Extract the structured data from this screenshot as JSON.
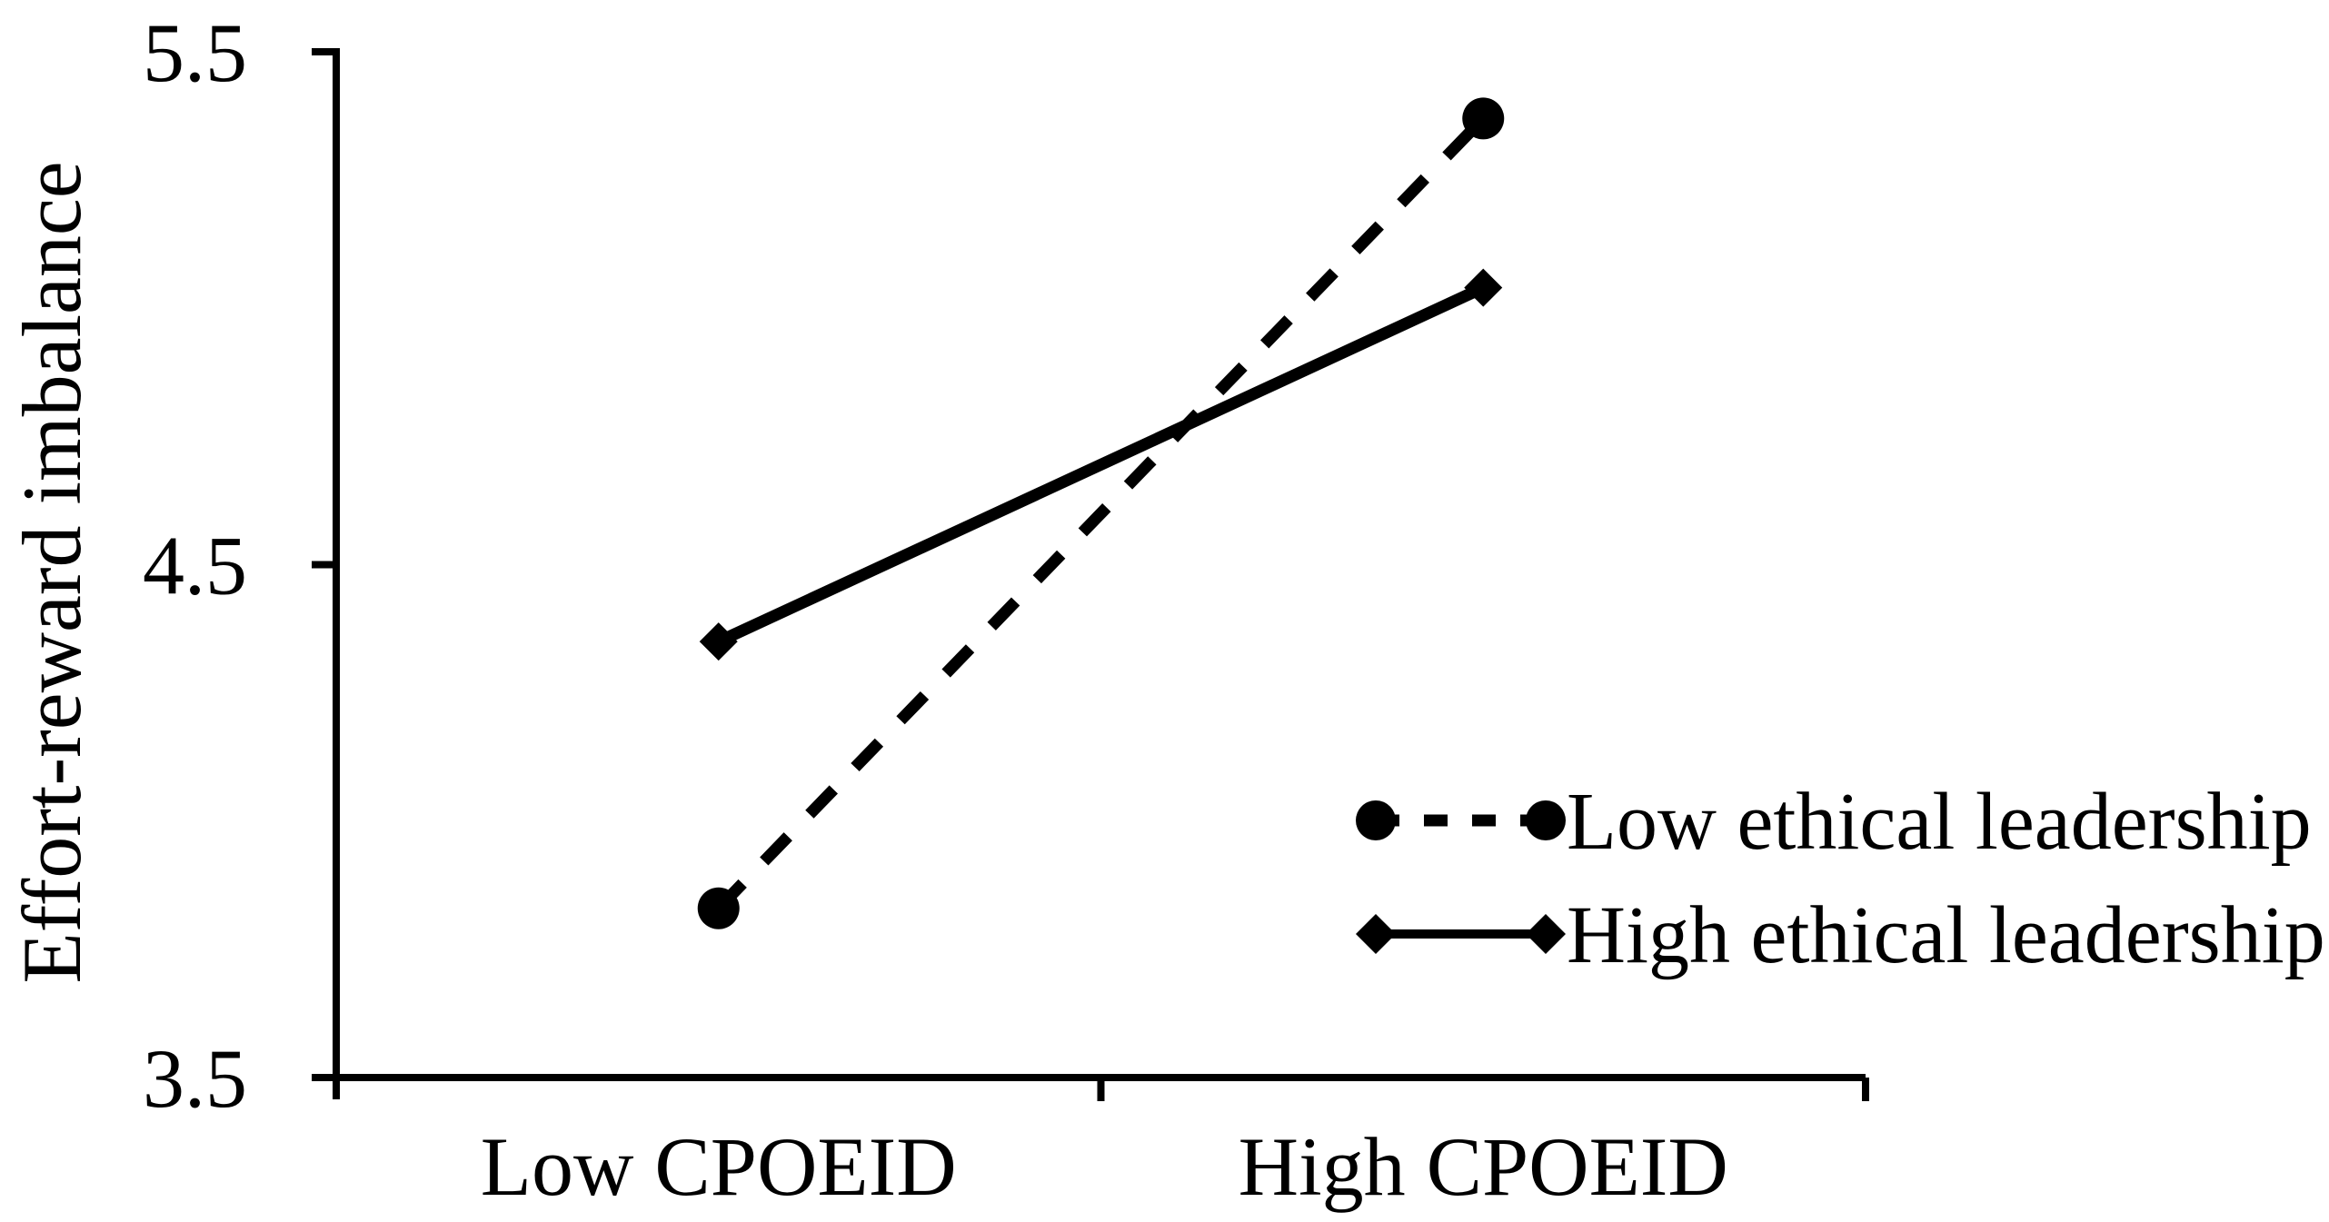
{
  "chart_data": {
    "type": "line",
    "title": "",
    "xlabel": "",
    "ylabel": "Effort-reward imbalance",
    "categories": [
      "Low CPOEID",
      "High CPOEID"
    ],
    "series": [
      {
        "name": "Low ethical leadership",
        "marker": "circle",
        "line_style": "dashed",
        "values": [
          3.83,
          5.37
        ]
      },
      {
        "name": "High ethical leadership",
        "marker": "diamond",
        "line_style": "solid",
        "values": [
          4.35,
          5.04
        ]
      }
    ],
    "ylim": [
      3.5,
      5.5
    ],
    "yticks": [
      {
        "value": 5.5,
        "label": "5.5"
      },
      {
        "value": 4.5,
        "label": "4.5"
      },
      {
        "value": 3.5,
        "label": "3.5"
      }
    ],
    "grid": false,
    "legend_position": "middle-right",
    "colors": {
      "ink": "#000000",
      "background": "#ffffff"
    }
  }
}
